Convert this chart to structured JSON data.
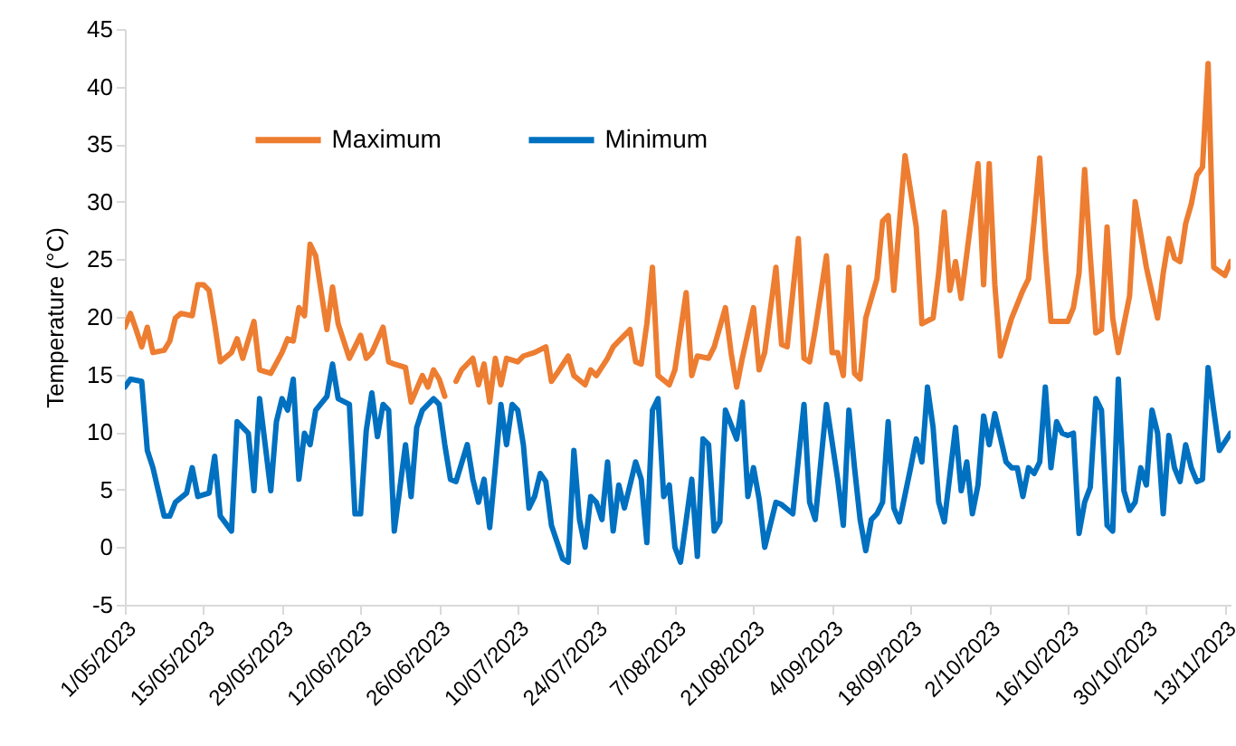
{
  "chart_data": {
    "type": "line",
    "ylabel": "Temperature (°C)",
    "ylim": [
      -5,
      45
    ],
    "yticks": [
      -5,
      0,
      5,
      10,
      15,
      20,
      25,
      30,
      35,
      40,
      45
    ],
    "xlim": [
      "2023-05-01",
      "2023-11-14"
    ],
    "xticks": [
      {
        "value": "2023-05-01",
        "label": "1/05/2023"
      },
      {
        "value": "2023-05-15",
        "label": "15/05/2023"
      },
      {
        "value": "2023-05-29",
        "label": "29/05/2023"
      },
      {
        "value": "2023-06-12",
        "label": "12/06/2023"
      },
      {
        "value": "2023-06-26",
        "label": "26/06/2023"
      },
      {
        "value": "2023-07-10",
        "label": "10/07/2023"
      },
      {
        "value": "2023-07-24",
        "label": "24/07/2023"
      },
      {
        "value": "2023-08-07",
        "label": "7/08/2023"
      },
      {
        "value": "2023-08-21",
        "label": "21/08/2023"
      },
      {
        "value": "2023-09-04",
        "label": "4/09/2023"
      },
      {
        "value": "2023-09-18",
        "label": "18/09/2023"
      },
      {
        "value": "2023-10-02",
        "label": "2/10/2023"
      },
      {
        "value": "2023-10-16",
        "label": "16/10/2023"
      },
      {
        "value": "2023-10-30",
        "label": "30/10/2023"
      },
      {
        "value": "2023-11-13",
        "label": "13/11/2023"
      }
    ],
    "legend": "top left",
    "series": [
      {
        "name": "Maximum",
        "color": "#ed7d31",
        "x": [
          "2023-05-01",
          "2023-05-02",
          "2023-05-03",
          "2023-05-04",
          "2023-05-05",
          "2023-05-06",
          "2023-05-08",
          "2023-05-09",
          "2023-05-10",
          "2023-05-11",
          "2023-05-13",
          "2023-05-14",
          "2023-05-15",
          "2023-05-16",
          "2023-05-17",
          "2023-05-18",
          "2023-05-20",
          "2023-05-21",
          "2023-05-22",
          "2023-05-24",
          "2023-05-25",
          "2023-05-27",
          "2023-05-29",
          "2023-05-30",
          "2023-05-31",
          "2023-06-01",
          "2023-06-02",
          "2023-06-03",
          "2023-06-04",
          "2023-06-06",
          "2023-06-07",
          "2023-06-08",
          "2023-06-10",
          "2023-06-11",
          "2023-06-12",
          "2023-06-13",
          "2023-06-14",
          "2023-06-16",
          "2023-06-17",
          "2023-06-18",
          "2023-06-20",
          "2023-06-21",
          "2023-06-23",
          "2023-06-24",
          "2023-06-25",
          "2023-06-26",
          "2023-06-27",
          "2023-06-28",
          "2023-06-29",
          "2023-06-30",
          "2023-07-02",
          "2023-07-03",
          "2023-07-04",
          "2023-07-05",
          "2023-07-06",
          "2023-07-07",
          "2023-07-08",
          "2023-07-10",
          "2023-07-11",
          "2023-07-13",
          "2023-07-15",
          "2023-07-16",
          "2023-07-17",
          "2023-07-19",
          "2023-07-20",
          "2023-07-22",
          "2023-07-23",
          "2023-07-24",
          "2023-07-26",
          "2023-07-27",
          "2023-07-28",
          "2023-07-29",
          "2023-07-30",
          "2023-07-31",
          "2023-08-01",
          "2023-08-02",
          "2023-08-03",
          "2023-08-04",
          "2023-08-06",
          "2023-08-07",
          "2023-08-09",
          "2023-08-10",
          "2023-08-11",
          "2023-08-13",
          "2023-08-14",
          "2023-08-16",
          "2023-08-17",
          "2023-08-18",
          "2023-08-19",
          "2023-08-21",
          "2023-08-22",
          "2023-08-23",
          "2023-08-25",
          "2023-08-26",
          "2023-08-27",
          "2023-08-29",
          "2023-08-30",
          "2023-08-31",
          "2023-09-01",
          "2023-09-03",
          "2023-09-04",
          "2023-09-05",
          "2023-09-06",
          "2023-09-07",
          "2023-09-08",
          "2023-09-09",
          "2023-09-10",
          "2023-09-12",
          "2023-09-13",
          "2023-09-14",
          "2023-09-15",
          "2023-09-17",
          "2023-09-19",
          "2023-09-20",
          "2023-09-22",
          "2023-09-23",
          "2023-09-24",
          "2023-09-25",
          "2023-09-26",
          "2023-09-27",
          "2023-09-29",
          "2023-09-30",
          "2023-10-01",
          "2023-10-02",
          "2023-10-03",
          "2023-10-04",
          "2023-10-06",
          "2023-10-08",
          "2023-10-09",
          "2023-10-10",
          "2023-10-11",
          "2023-10-12",
          "2023-10-13",
          "2023-10-14",
          "2023-10-16",
          "2023-10-17",
          "2023-10-18",
          "2023-10-19",
          "2023-10-20",
          "2023-10-21",
          "2023-10-22",
          "2023-10-23",
          "2023-10-24",
          "2023-10-25",
          "2023-10-27",
          "2023-10-28",
          "2023-10-30",
          "2023-11-01",
          "2023-11-02",
          "2023-11-03",
          "2023-11-04",
          "2023-11-05",
          "2023-11-06",
          "2023-11-07",
          "2023-11-08",
          "2023-11-09",
          "2023-11-10",
          "2023-11-11",
          "2023-11-13",
          "2023-11-14"
        ],
        "values": [
          19.1,
          20.3,
          18.9,
          17.4,
          19.1,
          16.9,
          17.1,
          17.9,
          19.9,
          20.3,
          20.1,
          22.8,
          22.8,
          22.3,
          19.4,
          16.1,
          16.9,
          18.1,
          16.4,
          19.6,
          15.4,
          15.1,
          16.9,
          18.1,
          17.9,
          20.8,
          20.1,
          26.3,
          25.3,
          18.9,
          22.6,
          19.4,
          16.4,
          17.4,
          18.4,
          16.4,
          16.9,
          19.1,
          16.1,
          15.9,
          15.6,
          12.6,
          14.9,
          13.9,
          15.4,
          14.6,
          13.1,
          null,
          14.4,
          15.4,
          16.4,
          14.1,
          15.9,
          12.6,
          16.4,
          14.1,
          16.4,
          16.1,
          16.6,
          16.9,
          17.4,
          14.4,
          15.1,
          16.6,
          14.9,
          14.1,
          15.4,
          14.9,
          16.4,
          17.4,
          17.9,
          18.4,
          18.9,
          16.1,
          15.9,
          19.4,
          24.3,
          14.9,
          14.1,
          15.4,
          22.1,
          14.9,
          16.6,
          16.4,
          17.4,
          20.8,
          16.9,
          13.9,
          16.4,
          20.8,
          15.4,
          16.9,
          24.3,
          17.6,
          17.4,
          26.8,
          16.4,
          16.1,
          18.9,
          25.3,
          16.9,
          16.9,
          14.9,
          24.3,
          15.1,
          14.6,
          19.9,
          23.3,
          28.3,
          28.8,
          22.3,
          34.0,
          27.8,
          19.4,
          19.9,
          23.8,
          29.1,
          22.3,
          24.8,
          21.6,
          29.3,
          33.3,
          22.8,
          33.3,
          22.8,
          16.6,
          19.9,
          22.3,
          23.3,
          28.3,
          33.8,
          25.8,
          19.6,
          19.6,
          19.6,
          20.8,
          23.8,
          32.8,
          25.3,
          18.6,
          18.9,
          27.8,
          19.9,
          16.9,
          21.8,
          30.0,
          24.3,
          19.9,
          23.8,
          26.8,
          25.1,
          24.8,
          28.1,
          29.8,
          32.3,
          33.0,
          42.0,
          24.3,
          23.6,
          24.8
        ]
      },
      {
        "name": "Minimum",
        "color": "#0070c0",
        "x": [
          "2023-05-01",
          "2023-05-02",
          "2023-05-04",
          "2023-05-05",
          "2023-05-06",
          "2023-05-08",
          "2023-05-09",
          "2023-05-10",
          "2023-05-12",
          "2023-05-13",
          "2023-05-14",
          "2023-05-16",
          "2023-05-17",
          "2023-05-18",
          "2023-05-20",
          "2023-05-21",
          "2023-05-23",
          "2023-05-24",
          "2023-05-25",
          "2023-05-27",
          "2023-05-28",
          "2023-05-29",
          "2023-05-30",
          "2023-05-31",
          "2023-06-01",
          "2023-06-02",
          "2023-06-03",
          "2023-06-04",
          "2023-06-06",
          "2023-06-07",
          "2023-06-08",
          "2023-06-10",
          "2023-06-11",
          "2023-06-12",
          "2023-06-13",
          "2023-06-14",
          "2023-06-15",
          "2023-06-16",
          "2023-06-17",
          "2023-06-18",
          "2023-06-20",
          "2023-06-21",
          "2023-06-22",
          "2023-06-23",
          "2023-06-25",
          "2023-06-26",
          "2023-06-27",
          "2023-06-28",
          "2023-06-29",
          "2023-07-01",
          "2023-07-02",
          "2023-07-03",
          "2023-07-04",
          "2023-07-05",
          "2023-07-06",
          "2023-07-07",
          "2023-07-08",
          "2023-07-09",
          "2023-07-10",
          "2023-07-11",
          "2023-07-12",
          "2023-07-13",
          "2023-07-14",
          "2023-07-15",
          "2023-07-16",
          "2023-07-18",
          "2023-07-19",
          "2023-07-20",
          "2023-07-21",
          "2023-07-22",
          "2023-07-23",
          "2023-07-24",
          "2023-07-25",
          "2023-07-26",
          "2023-07-27",
          "2023-07-28",
          "2023-07-29",
          "2023-07-31",
          "2023-08-01",
          "2023-08-02",
          "2023-08-03",
          "2023-08-04",
          "2023-08-05",
          "2023-08-06",
          "2023-08-07",
          "2023-08-08",
          "2023-08-10",
          "2023-08-11",
          "2023-08-12",
          "2023-08-13",
          "2023-08-14",
          "2023-08-15",
          "2023-08-16",
          "2023-08-18",
          "2023-08-19",
          "2023-08-20",
          "2023-08-21",
          "2023-08-22",
          "2023-08-23",
          "2023-08-25",
          "2023-08-26",
          "2023-08-28",
          "2023-08-30",
          "2023-08-31",
          "2023-09-01",
          "2023-09-03",
          "2023-09-05",
          "2023-09-06",
          "2023-09-07",
          "2023-09-08",
          "2023-09-09",
          "2023-09-10",
          "2023-09-11",
          "2023-09-12",
          "2023-09-13",
          "2023-09-14",
          "2023-09-15",
          "2023-09-16",
          "2023-09-18",
          "2023-09-19",
          "2023-09-20",
          "2023-09-21",
          "2023-09-22",
          "2023-09-23",
          "2023-09-24",
          "2023-09-26",
          "2023-09-27",
          "2023-09-28",
          "2023-09-29",
          "2023-09-30",
          "2023-10-01",
          "2023-10-02",
          "2023-10-03",
          "2023-10-05",
          "2023-10-06",
          "2023-10-07",
          "2023-10-08",
          "2023-10-09",
          "2023-10-10",
          "2023-10-11",
          "2023-10-12",
          "2023-10-13",
          "2023-10-14",
          "2023-10-15",
          "2023-10-16",
          "2023-10-17",
          "2023-10-18",
          "2023-10-19",
          "2023-10-20",
          "2023-10-21",
          "2023-10-22",
          "2023-10-23",
          "2023-10-24",
          "2023-10-25",
          "2023-10-26",
          "2023-10-27",
          "2023-10-28",
          "2023-10-29",
          "2023-10-30",
          "2023-10-31",
          "2023-11-01",
          "2023-11-02",
          "2023-11-03",
          "2023-11-04",
          "2023-11-05",
          "2023-11-06",
          "2023-11-07",
          "2023-11-08",
          "2023-11-09",
          "2023-11-10",
          "2023-11-11",
          "2023-11-12",
          "2023-11-14"
        ],
        "values": [
          13.9,
          14.6,
          14.4,
          8.4,
          6.9,
          2.7,
          2.7,
          3.9,
          4.7,
          6.9,
          4.4,
          4.7,
          7.9,
          2.7,
          1.4,
          10.9,
          9.9,
          4.9,
          12.9,
          4.9,
          10.9,
          12.9,
          11.9,
          14.6,
          5.9,
          9.9,
          8.9,
          11.9,
          13.1,
          15.9,
          12.9,
          12.4,
          2.9,
          2.9,
          10.1,
          13.4,
          9.6,
          12.4,
          11.9,
          1.4,
          8.9,
          4.4,
          10.4,
          11.9,
          12.9,
          12.4,
          8.9,
          5.9,
          5.7,
          8.9,
          5.9,
          3.9,
          5.9,
          1.7,
          6.9,
          12.4,
          8.9,
          12.4,
          11.9,
          8.9,
          3.4,
          4.4,
          6.4,
          5.7,
          1.9,
          -1.0,
          -1.3,
          8.4,
          2.4,
          0,
          4.4,
          3.9,
          2.4,
          7.4,
          1.4,
          5.4,
          3.4,
          7.4,
          5.9,
          0.4,
          11.9,
          12.9,
          4.4,
          5.4,
          0,
          -1.3,
          5.9,
          -0.8,
          9.4,
          8.9,
          1.4,
          2.2,
          11.9,
          9.4,
          12.6,
          4.4,
          6.9,
          4.2,
          0,
          3.9,
          3.7,
          2.9,
          12.4,
          3.9,
          2.4,
          12.4,
          5.9,
          1.9,
          11.9,
          6.9,
          2.4,
          -0.3,
          2.4,
          2.9,
          3.9,
          10.9,
          3.4,
          2.2,
          6.9,
          9.4,
          7.4,
          13.9,
          10.4,
          3.9,
          2.2,
          10.4,
          4.9,
          7.4,
          2.9,
          5.4,
          11.4,
          8.9,
          11.6,
          7.4,
          6.9,
          6.9,
          4.4,
          6.9,
          6.4,
          7.4,
          13.9,
          6.9,
          10.9,
          9.9,
          9.7,
          9.9,
          1.2,
          3.9,
          5.2,
          12.9,
          11.9,
          1.9,
          1.4,
          14.6,
          4.9,
          3.2,
          3.9,
          6.9,
          5.4,
          11.9,
          9.9,
          2.9,
          9.7,
          6.9,
          5.7,
          8.9,
          6.9,
          5.7,
          5.9,
          15.6,
          11.9,
          8.4,
          9.9
        ]
      }
    ]
  }
}
